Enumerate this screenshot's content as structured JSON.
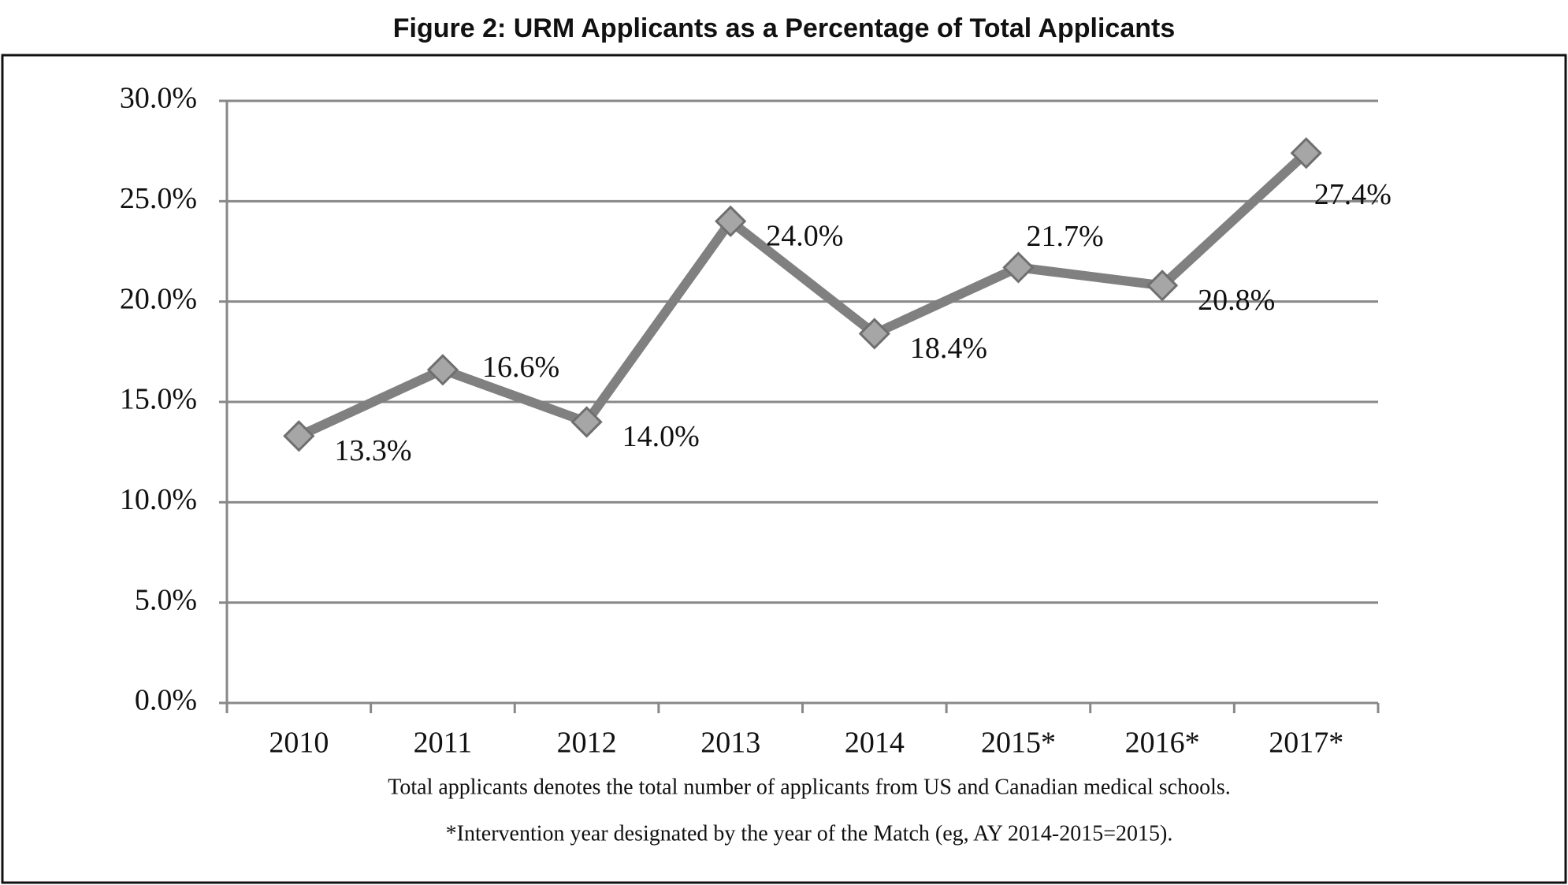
{
  "chart_data": {
    "type": "line",
    "title": "Figure 2: URM Applicants as a Percentage of Total Applicants",
    "categories": [
      "2010",
      "2011",
      "2012",
      "2013",
      "2014",
      "2015*",
      "2016*",
      "2017*"
    ],
    "series": [
      {
        "name": "URM Applicants",
        "color": "#808080",
        "values": [
          13.3,
          16.6,
          14.0,
          24.0,
          18.4,
          21.7,
          20.8,
          27.4
        ],
        "value_labels": [
          "13.3%",
          "16.6%",
          "14.0%",
          "24.0%",
          "18.4%",
          "21.7%",
          "20.8%",
          "27.4%"
        ]
      }
    ],
    "ylim": [
      0,
      30
    ],
    "yticks": [
      {
        "value": 0,
        "label": "0.0%"
      },
      {
        "value": 5,
        "label": "5.0%"
      },
      {
        "value": 10,
        "label": "10.0%"
      },
      {
        "value": 15,
        "label": "15.0%"
      },
      {
        "value": 20,
        "label": "20.0%"
      },
      {
        "value": 25,
        "label": "25.0%"
      },
      {
        "value": 30,
        "label": "30.0%"
      }
    ],
    "grid": true,
    "notes": [
      "Total applicants denotes the total number of applicants from US and Canadian medical schools.",
      "*Intervention year designated by the year of the Match (eg, AY 2014-2015=2015)."
    ]
  }
}
